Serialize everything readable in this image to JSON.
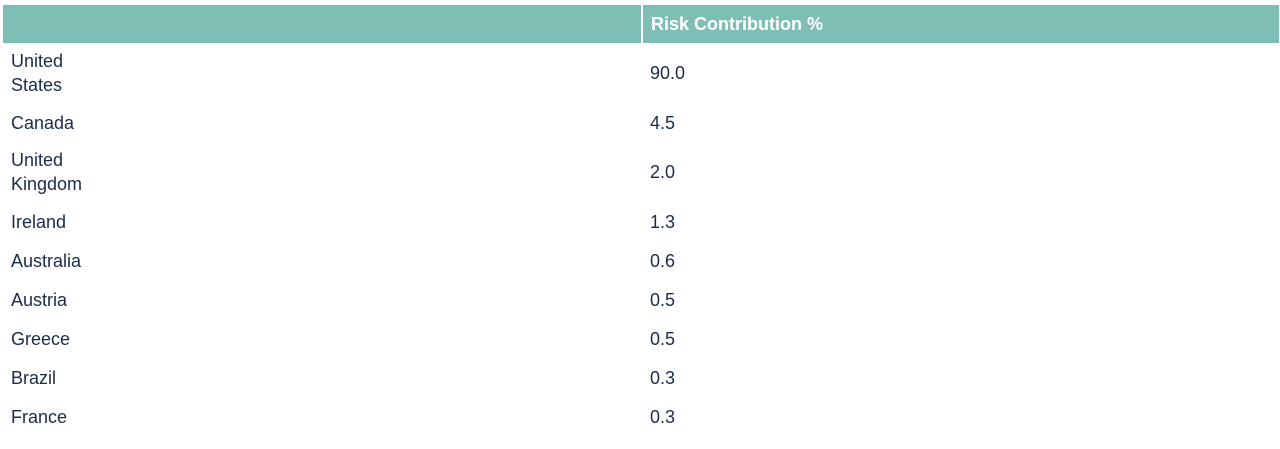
{
  "chart_data": {
    "type": "table",
    "columns": [
      "",
      "Risk Contribution %"
    ],
    "rows": [
      {
        "country": "United States",
        "value": "90.0"
      },
      {
        "country": "Canada",
        "value": "4.5"
      },
      {
        "country": "United Kingdom",
        "value": "2.0"
      },
      {
        "country": "Ireland",
        "value": "1.3"
      },
      {
        "country": "Australia",
        "value": "0.6"
      },
      {
        "country": "Austria",
        "value": "0.5"
      },
      {
        "country": "Greece",
        "value": "0.5"
      },
      {
        "country": "Brazil",
        "value": "0.3"
      },
      {
        "country": "France",
        "value": "0.3"
      }
    ]
  },
  "colors": {
    "header_bg": "#7fbeb4",
    "header_text": "#ffffff",
    "body_text": "#1b2b4a"
  }
}
